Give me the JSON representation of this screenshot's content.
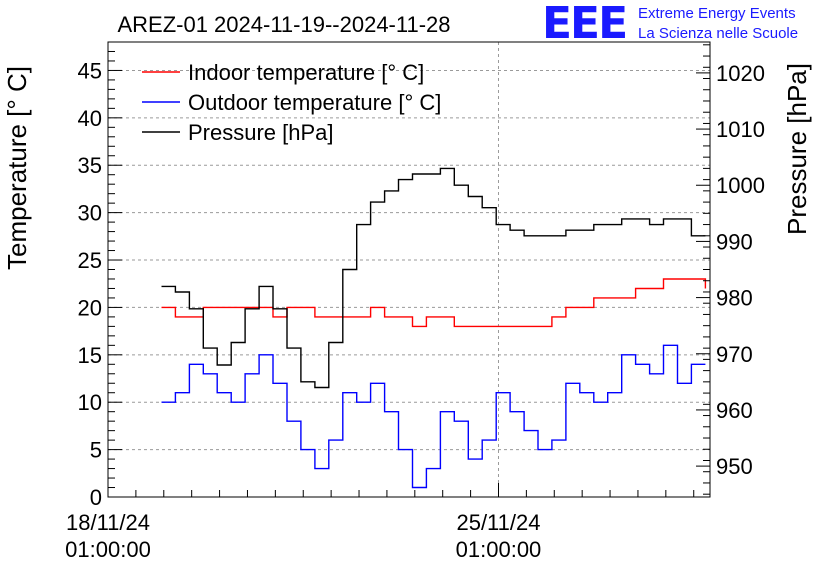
{
  "logo": {
    "mark": "EEE",
    "line1": "Extreme Energy Events",
    "line2": "La Scienza nelle Scuole"
  },
  "chart_data": {
    "type": "line",
    "title": "AREZ-01 2024-11-19--2024-11-28",
    "ylabel": "Temperature [° C]",
    "y2label": "Pressure [hPa]",
    "ylim": [
      0,
      48
    ],
    "y2lim": [
      944.5,
      1025.5
    ],
    "xlim": [
      "2024-11-18 01:00:00",
      "2024-11-28 20:00:00"
    ],
    "yticks": [
      0,
      5,
      10,
      15,
      20,
      25,
      30,
      35,
      40,
      45
    ],
    "y2ticks": [
      950,
      960,
      970,
      980,
      990,
      1000,
      1010,
      1020
    ],
    "xticks": [
      {
        "x": "2024-11-18 01:00:00",
        "line1": "18/11/24",
        "line2": "01:00:00"
      },
      {
        "x": "2024-11-25 01:00:00",
        "line1": "25/11/24",
        "line2": "01:00:00"
      }
    ],
    "grid": true,
    "legend_position": "top-left",
    "series": [
      {
        "name": "Indoor temperature [° C]",
        "axis": "left",
        "color": "#ff0000",
        "x": [
          "2024-11-19 00:00",
          "2024-11-19 06:00",
          "2024-11-19 12:00",
          "2024-11-19 18:00",
          "2024-11-20 00:00",
          "2024-11-20 06:00",
          "2024-11-20 12:00",
          "2024-11-20 18:00",
          "2024-11-21 00:00",
          "2024-11-21 06:00",
          "2024-11-21 12:00",
          "2024-11-21 18:00",
          "2024-11-22 00:00",
          "2024-11-22 06:00",
          "2024-11-22 12:00",
          "2024-11-22 18:00",
          "2024-11-23 00:00",
          "2024-11-23 06:00",
          "2024-11-23 12:00",
          "2024-11-23 18:00",
          "2024-11-24 00:00",
          "2024-11-24 06:00",
          "2024-11-24 12:00",
          "2024-11-24 18:00",
          "2024-11-25 00:00",
          "2024-11-25 06:00",
          "2024-11-25 12:00",
          "2024-11-25 18:00",
          "2024-11-26 00:00",
          "2024-11-26 06:00",
          "2024-11-26 12:00",
          "2024-11-26 18:00",
          "2024-11-27 00:00",
          "2024-11-27 06:00",
          "2024-11-27 12:00",
          "2024-11-27 18:00",
          "2024-11-28 00:00",
          "2024-11-28 06:00",
          "2024-11-28 12:00",
          "2024-11-28 18:00"
        ],
        "values": [
          20,
          19,
          19,
          20,
          20,
          20,
          20,
          20,
          19,
          20,
          20,
          19,
          19,
          19,
          19,
          20,
          19,
          19,
          18,
          19,
          19,
          18,
          18,
          18,
          18,
          18,
          18,
          18,
          19,
          20,
          20,
          21,
          21,
          21,
          22,
          22,
          23,
          23,
          23,
          22
        ]
      },
      {
        "name": "Outdoor temperature [° C]",
        "axis": "left",
        "color": "#0000ff",
        "x": [
          "2024-11-19 00:00",
          "2024-11-19 06:00",
          "2024-11-19 12:00",
          "2024-11-19 18:00",
          "2024-11-20 00:00",
          "2024-11-20 06:00",
          "2024-11-20 12:00",
          "2024-11-20 18:00",
          "2024-11-21 00:00",
          "2024-11-21 06:00",
          "2024-11-21 12:00",
          "2024-11-21 18:00",
          "2024-11-22 00:00",
          "2024-11-22 06:00",
          "2024-11-22 12:00",
          "2024-11-22 18:00",
          "2024-11-23 00:00",
          "2024-11-23 06:00",
          "2024-11-23 12:00",
          "2024-11-23 18:00",
          "2024-11-24 00:00",
          "2024-11-24 06:00",
          "2024-11-24 12:00",
          "2024-11-24 18:00",
          "2024-11-25 00:00",
          "2024-11-25 06:00",
          "2024-11-25 12:00",
          "2024-11-25 18:00",
          "2024-11-26 00:00",
          "2024-11-26 06:00",
          "2024-11-26 12:00",
          "2024-11-26 18:00",
          "2024-11-27 00:00",
          "2024-11-27 06:00",
          "2024-11-27 12:00",
          "2024-11-27 18:00",
          "2024-11-28 00:00",
          "2024-11-28 06:00",
          "2024-11-28 12:00",
          "2024-11-28 18:00"
        ],
        "values": [
          10,
          11,
          14,
          13,
          11,
          10,
          13,
          15,
          12,
          8,
          5,
          3,
          6,
          11,
          10,
          12,
          9,
          5,
          1,
          3,
          9,
          8,
          4,
          6,
          11,
          9,
          7,
          5,
          6,
          12,
          11,
          10,
          11,
          15,
          14,
          13,
          16,
          12,
          14,
          14
        ]
      },
      {
        "name": "Pressure [hPa]",
        "axis": "right",
        "color": "#000000",
        "x": [
          "2024-11-19 00:00",
          "2024-11-19 06:00",
          "2024-11-19 12:00",
          "2024-11-19 18:00",
          "2024-11-20 00:00",
          "2024-11-20 06:00",
          "2024-11-20 12:00",
          "2024-11-20 18:00",
          "2024-11-21 00:00",
          "2024-11-21 06:00",
          "2024-11-21 12:00",
          "2024-11-21 18:00",
          "2024-11-22 00:00",
          "2024-11-22 06:00",
          "2024-11-22 12:00",
          "2024-11-22 18:00",
          "2024-11-23 00:00",
          "2024-11-23 06:00",
          "2024-11-23 12:00",
          "2024-11-23 18:00",
          "2024-11-24 00:00",
          "2024-11-24 06:00",
          "2024-11-24 12:00",
          "2024-11-24 18:00",
          "2024-11-25 00:00",
          "2024-11-25 06:00",
          "2024-11-25 12:00",
          "2024-11-25 18:00",
          "2024-11-26 00:00",
          "2024-11-26 06:00",
          "2024-11-26 12:00",
          "2024-11-26 18:00",
          "2024-11-27 00:00",
          "2024-11-27 06:00",
          "2024-11-27 12:00",
          "2024-11-27 18:00",
          "2024-11-28 00:00",
          "2024-11-28 06:00",
          "2024-11-28 12:00",
          "2024-11-28 18:00"
        ],
        "values": [
          982,
          981,
          978,
          971,
          968,
          972,
          978,
          982,
          978,
          971,
          965,
          964,
          972,
          985,
          993,
          997,
          999,
          1001,
          1002,
          1002,
          1003,
          1000,
          998,
          996,
          993,
          992,
          991,
          991,
          991,
          992,
          992,
          993,
          993,
          994,
          994,
          993,
          994,
          994,
          991,
          991
        ]
      }
    ]
  }
}
